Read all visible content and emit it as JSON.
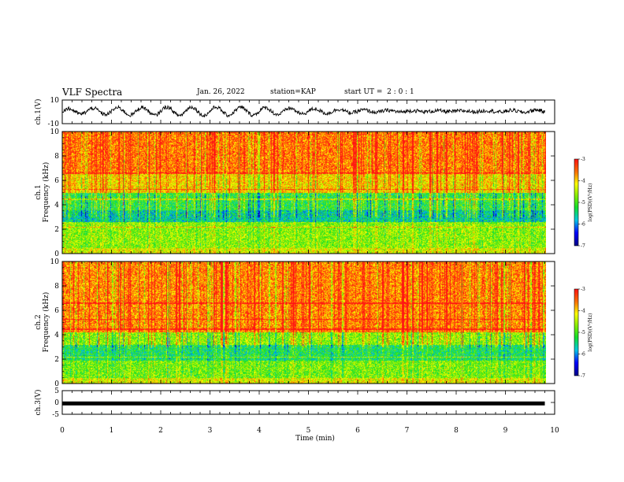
{
  "header": {
    "title": "VLF Spectra",
    "date": "Jan. 26, 2022",
    "station": "station=KAP",
    "start": "start UT =  2 : 0 : 1"
  },
  "chart_data": [
    {
      "type": "line",
      "panel": "ch1-waveform",
      "ylabel": "ch.1(V)",
      "ylim": [
        -10,
        10
      ],
      "y_ticks": [
        "10",
        "-10"
      ],
      "description_values": {
        "x_range_min": [
          0,
          9.8
        ],
        "oscillation_period_min": 0.5,
        "amplitude_v": 5
      }
    },
    {
      "type": "heatmap",
      "panel": "ch1-spectrogram",
      "ylabel": "Frequency (kHz)",
      "ylabel_prefix": "ch.1",
      "ylim": [
        0,
        10
      ],
      "y_ticks": [
        "0",
        "2",
        "4",
        "6",
        "8",
        "10"
      ],
      "x_range_min": [
        0,
        9.8
      ],
      "colorbar": {
        "label": "log(PSD)(V²/Hz)",
        "ticks": [
          "-3",
          "-4",
          "-5",
          "-6",
          "-7"
        ],
        "range": [
          -7,
          -3
        ]
      }
    },
    {
      "type": "heatmap",
      "panel": "ch2-spectrogram",
      "ylabel": "Frequency (kHz)",
      "ylabel_prefix": "ch.2",
      "ylim": [
        0,
        10
      ],
      "y_ticks": [
        "0",
        "2",
        "4",
        "6",
        "8",
        "10"
      ],
      "x_range_min": [
        0,
        9.8
      ],
      "colorbar": {
        "label": "log(PSD)(V²/Hz)",
        "ticks": [
          "-3",
          "-4",
          "-5",
          "-6",
          "-7"
        ],
        "range": [
          -7,
          -3
        ]
      }
    },
    {
      "type": "line",
      "panel": "ch3-waveform",
      "ylabel": "ch.3(V)",
      "ylim": [
        -5,
        5
      ],
      "y_ticks": [
        "5",
        "0",
        "-5"
      ],
      "x": [
        0,
        9.8
      ],
      "y": [
        -0.4,
        -0.4
      ],
      "xlabel": "Time (min)",
      "xlim": [
        0,
        10
      ],
      "x_ticks": [
        "0",
        "1",
        "2",
        "3",
        "4",
        "5",
        "6",
        "7",
        "8",
        "9",
        "10"
      ]
    }
  ],
  "colors": {
    "red": "#ff1a1a",
    "yellow": "#ffff00",
    "green": "#22e022",
    "cyan": "#00e0e0",
    "blue": "#0000ff",
    "ink": "#000000"
  }
}
